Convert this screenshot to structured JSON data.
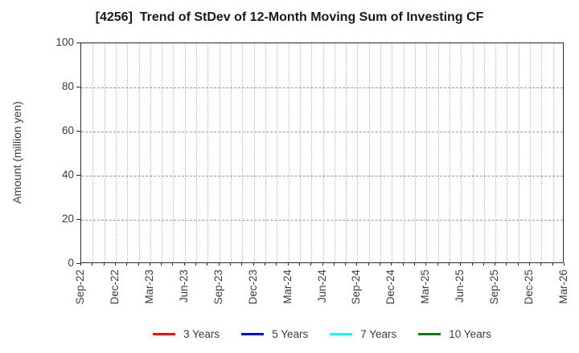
{
  "chart": {
    "title": "[4256]  Trend of StDev of 12-Month Moving Sum of Investing CF",
    "ylabel": "Amount (million yen)"
  },
  "colors": {
    "title_text": "#1a1a1a",
    "tick_text": "#3c3c3c",
    "axis_border": "#2b2b2b",
    "grid_minor_dotted": "#b8b8b8",
    "grid_major_dashed": "#9a9a9a",
    "background": "#ffffff"
  },
  "chart_data": {
    "type": "line",
    "title": "[4256]  Trend of StDev of 12-Month Moving Sum of Investing CF",
    "xlabel": "",
    "ylabel": "Amount (million yen)",
    "ylim": [
      0,
      100
    ],
    "y_ticks": [
      0,
      20,
      40,
      60,
      80,
      100
    ],
    "x_tick_labels": [
      "Sep-22",
      "Dec-22",
      "Mar-23",
      "Jun-23",
      "Sep-23",
      "Dec-23",
      "Mar-24",
      "Jun-24",
      "Sep-24",
      "Dec-24",
      "Mar-25",
      "Jun-25",
      "Sep-25",
      "Dec-25",
      "Mar-26"
    ],
    "months_per_major_tick": 3,
    "grid": true,
    "grid_vertical_every": "month",
    "legend_position": "bottom-center",
    "series": [
      {
        "name": "3 Years",
        "color": "#ff0000",
        "x": [],
        "values": []
      },
      {
        "name": "5 Years",
        "color": "#0000ff",
        "x": [],
        "values": []
      },
      {
        "name": "7 Years",
        "color": "#00ffff",
        "x": [],
        "values": []
      },
      {
        "name": "10 Years",
        "color": "#008000",
        "x": [],
        "values": []
      }
    ]
  }
}
